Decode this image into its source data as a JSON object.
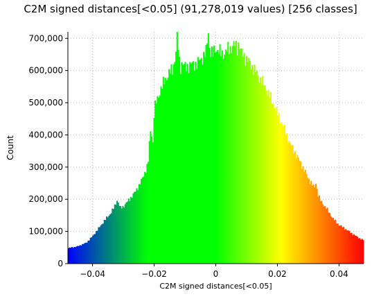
{
  "chart_data": {
    "type": "bar",
    "title": "C2M signed distances[<0.05] (91,278,019 values) [256 classes]",
    "xlabel": "C2M signed distances[<0.05]",
    "ylabel": "Count",
    "xlim": [
      -0.048,
      0.048
    ],
    "ylim": [
      0,
      720000
    ],
    "x_ticks": [
      -0.04,
      -0.02,
      0,
      0.02,
      0.04
    ],
    "x_tick_labels": [
      "−0.04",
      "−0.02",
      "0",
      "0.02",
      "0.04"
    ],
    "y_ticks": [
      0,
      100000,
      200000,
      300000,
      400000,
      500000,
      600000,
      700000
    ],
    "y_tick_labels": [
      "0",
      "100,000",
      "200,000",
      "300,000",
      "400,000",
      "500,000",
      "600,000",
      "700,000"
    ],
    "grid": true,
    "colormap": [
      "#0000ff",
      "#00ff00",
      "#ffff00",
      "#ff0000"
    ],
    "bins": 256,
    "profile": {
      "x": [
        -0.048,
        -0.045,
        -0.042,
        -0.04,
        -0.038,
        -0.036,
        -0.034,
        -0.033,
        -0.032,
        -0.031,
        -0.03,
        -0.028,
        -0.026,
        -0.024,
        -0.022,
        -0.0215,
        -0.021,
        -0.0205,
        -0.02,
        -0.018,
        -0.016,
        -0.014,
        -0.013,
        -0.0125,
        -0.012,
        -0.0115,
        -0.011,
        -0.01,
        -0.008,
        -0.006,
        -0.004,
        -0.003,
        -0.0025,
        -0.002,
        -0.001,
        0,
        0.002,
        0.004,
        0.006,
        0.007,
        0.0075,
        0.008,
        0.01,
        0.012,
        0.014,
        0.016,
        0.018,
        0.02,
        0.022,
        0.024,
        0.026,
        0.028,
        0.03,
        0.032,
        0.0325,
        0.033,
        0.034,
        0.036,
        0.038,
        0.04,
        0.042,
        0.044,
        0.046,
        0.048
      ],
      "y": [
        48000,
        53000,
        65000,
        85000,
        110000,
        135000,
        158000,
        175000,
        198000,
        172000,
        178000,
        200000,
        225000,
        260000,
        310000,
        380000,
        430000,
        360000,
        480000,
        540000,
        580000,
        605000,
        650000,
        725000,
        640000,
        610000,
        625000,
        610000,
        618000,
        622000,
        645000,
        660000,
        730000,
        665000,
        650000,
        670000,
        650000,
        665000,
        680000,
        670000,
        690000,
        660000,
        635000,
        610000,
        580000,
        550000,
        510000,
        465000,
        425000,
        375000,
        340000,
        305000,
        265000,
        235000,
        255000,
        218000,
        195000,
        170000,
        140000,
        120000,
        108000,
        95000,
        82000,
        72000
      ]
    }
  }
}
